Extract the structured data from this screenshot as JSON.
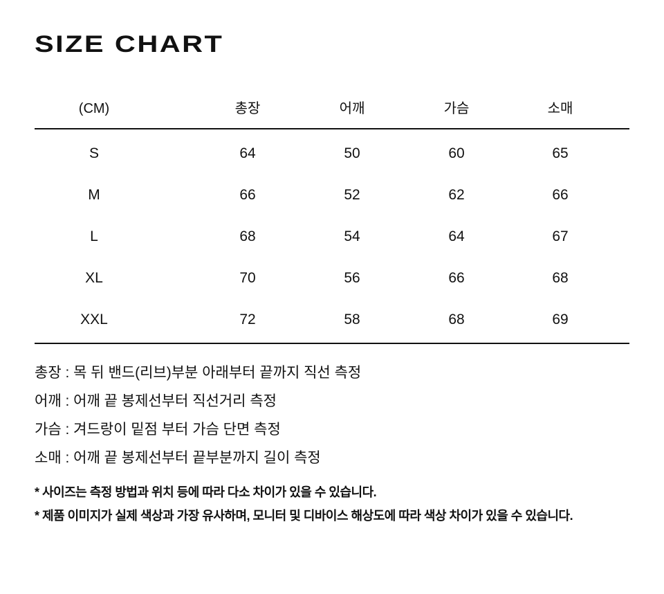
{
  "title": "SIZE CHART",
  "table": {
    "headers": [
      "(CM)",
      "총장",
      "어깨",
      "가슴",
      "소매"
    ],
    "rows": [
      [
        "S",
        "64",
        "50",
        "60",
        "65"
      ],
      [
        "M",
        "66",
        "52",
        "62",
        "66"
      ],
      [
        "L",
        "68",
        "54",
        "64",
        "67"
      ],
      [
        "XL",
        "70",
        "56",
        "66",
        "68"
      ],
      [
        "XXL",
        "72",
        "58",
        "68",
        "69"
      ]
    ]
  },
  "notes": [
    "총장 : 목 뒤 밴드(리브)부분 아래부터 끝까지 직선 측정",
    "어깨 : 어깨 끝 봉제선부터 직선거리 측정",
    "가슴 : 겨드랑이 밑점 부터 가슴 단면 측정",
    "소매 : 어깨 끝 봉제선부터 끝부분까지 길이 측정"
  ],
  "footnotes": [
    "* 사이즈는 측정 방법과 위치 등에 따라 다소 차이가 있을 수 있습니다.",
    "* 제품 이미지가 실제 색상과 가장 유사하며, 모니터 및 디바이스 해상도에 따라 색상 차이가 있을 수 있습니다."
  ]
}
